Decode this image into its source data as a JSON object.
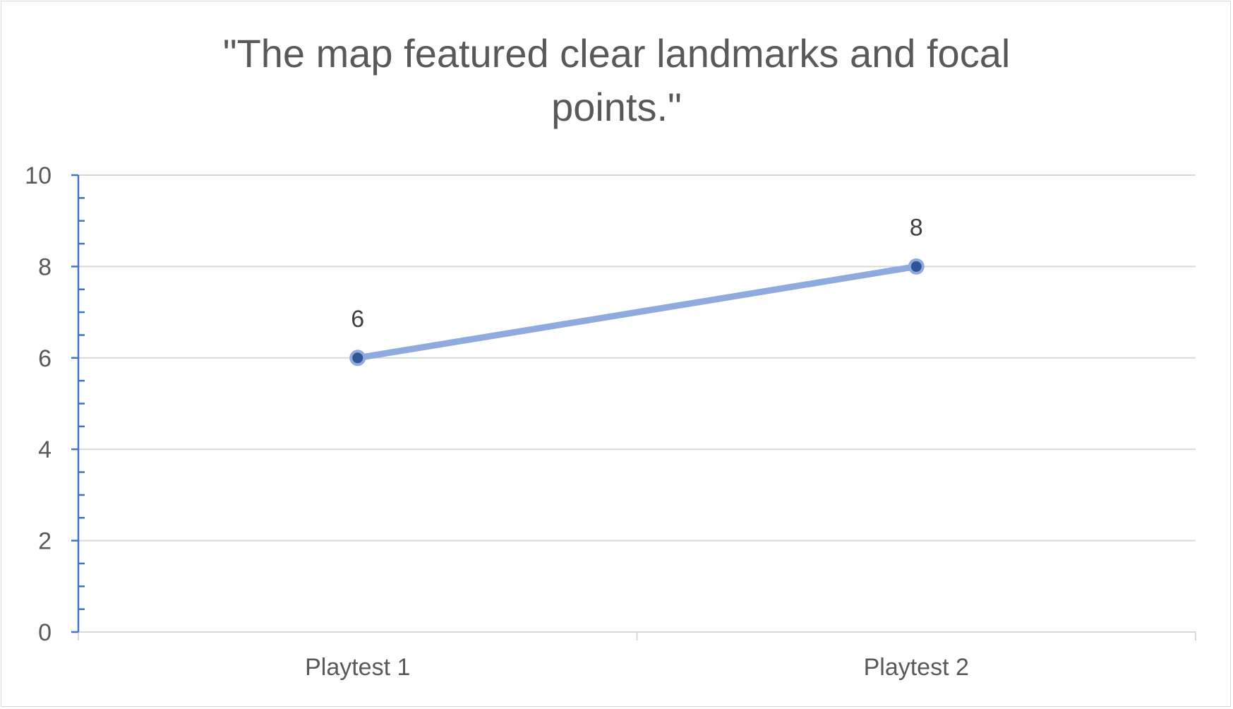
{
  "chart_data": {
    "type": "line",
    "title_lines": [
      "\"The map featured clear landmarks and focal",
      "points.\""
    ],
    "categories": [
      "Playtest 1",
      "Playtest 2"
    ],
    "series": [
      {
        "values": [
          6,
          8
        ]
      }
    ],
    "data_labels": [
      "6",
      "8"
    ],
    "ylim": [
      0,
      10
    ],
    "yticks": [
      0,
      2,
      4,
      6,
      8,
      10
    ],
    "ytick_labels": [
      "0",
      "2",
      "4",
      "6",
      "8",
      "10"
    ],
    "grid": true,
    "legend": "none",
    "colors": {
      "line": "#8faadc",
      "marker_fill": "#2f5597",
      "marker_edge": "#8faadc",
      "axis": "#4472c4",
      "grid": "#d9d9d9",
      "text": "#595959"
    }
  }
}
